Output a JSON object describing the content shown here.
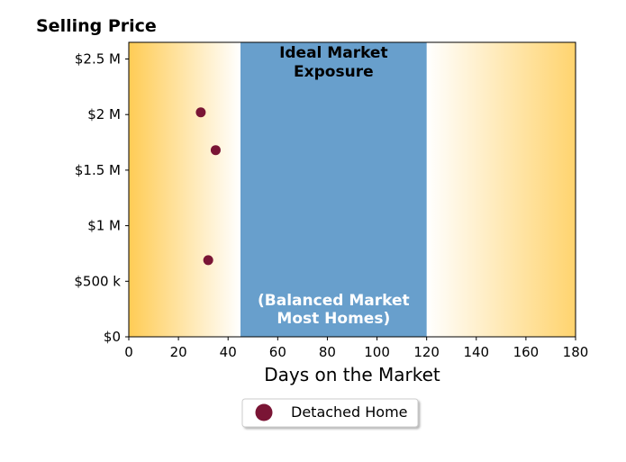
{
  "chart_data": {
    "type": "scatter",
    "title": "Selling Price",
    "xlabel": "Days on the Market",
    "xlim": [
      0,
      180
    ],
    "ylim": [
      0,
      2650000
    ],
    "xticks": [
      0,
      20,
      40,
      60,
      80,
      100,
      120,
      140,
      160,
      180
    ],
    "yticks": [
      {
        "value": 0,
        "label": "$0"
      },
      {
        "value": 500000,
        "label": "$500 k"
      },
      {
        "value": 1000000,
        "label": "$1 M"
      },
      {
        "value": 1500000,
        "label": "$1.5 M"
      },
      {
        "value": 2000000,
        "label": "$2 M"
      },
      {
        "value": 2500000,
        "label": "$2.5 M"
      }
    ],
    "series": [
      {
        "name": "Detached Home",
        "color": "#7a1535",
        "points": [
          {
            "x": 29,
            "y": 2020000
          },
          {
            "x": 35,
            "y": 1680000
          },
          {
            "x": 32,
            "y": 690000
          }
        ]
      }
    ],
    "bands": {
      "ideal": {
        "from": 45,
        "to": 120,
        "color": "#689fcc"
      },
      "left_gradient": {
        "from": 0,
        "to": 45,
        "color": "#ffcc55"
      },
      "right_gradient": {
        "from": 120,
        "to": 180,
        "color": "#ffcc55"
      }
    },
    "annotations": {
      "top_line1": "Ideal Market",
      "top_line2": "Exposure",
      "bottom_line1": "(Balanced Market",
      "bottom_line2": "Most Homes)"
    },
    "legend": {
      "position": "bottom-center",
      "label": "Detached Home"
    },
    "grid": false
  }
}
